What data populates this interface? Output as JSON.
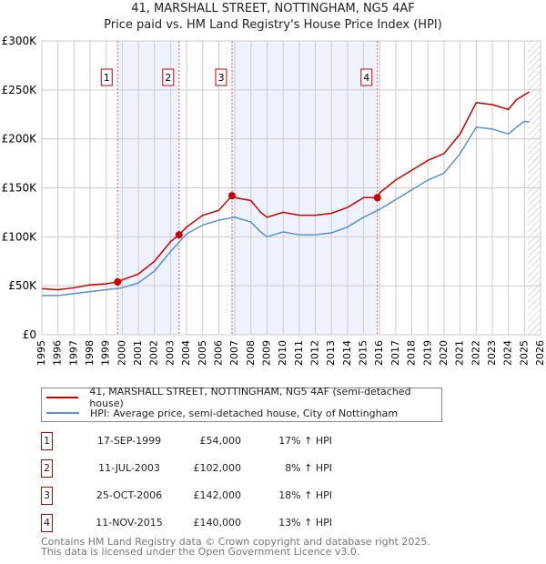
{
  "title": "41, MARSHALL STREET, NOTTINGHAM, NG5 4AF",
  "subtitle": "Price paid vs. HM Land Registry's House Price Index (HPI)",
  "chart_data": {
    "type": "line",
    "xlim": [
      1995,
      2026
    ],
    "ylim": [
      0,
      300000
    ],
    "y_ticks": [
      {
        "v": 0,
        "label": "£0"
      },
      {
        "v": 50000,
        "label": "£50K"
      },
      {
        "v": 100000,
        "label": "£100K"
      },
      {
        "v": 150000,
        "label": "£150K"
      },
      {
        "v": 200000,
        "label": "£200K"
      },
      {
        "v": 250000,
        "label": "£250K"
      },
      {
        "v": 300000,
        "label": "£300K"
      }
    ],
    "x_ticks": [
      "1995",
      "1996",
      "1997",
      "1998",
      "1999",
      "2000",
      "2001",
      "2002",
      "2003",
      "2004",
      "2005",
      "2006",
      "2007",
      "2008",
      "2009",
      "2010",
      "2011",
      "2012",
      "2013",
      "2014",
      "2015",
      "2016",
      "2017",
      "2018",
      "2019",
      "2020",
      "2021",
      "2022",
      "2023",
      "2024",
      "2025",
      "2026"
    ],
    "shaded_periods": [
      [
        1999.71,
        2003.53
      ],
      [
        2006.82,
        2015.86
      ]
    ],
    "forecast_hatch_from": 2025.2,
    "series": [
      {
        "name": "41, MARSHALL STREET, NOTTINGHAM, NG5 4AF (semi-detached house)",
        "color": "#cc0000",
        "x": [
          1995,
          1996,
          1997,
          1998,
          1999,
          1999.71,
          2000,
          2001,
          2002,
          2003,
          2003.53,
          2004,
          2005,
          2006,
          2006.82,
          2007,
          2008,
          2008.6,
          2009,
          2010,
          2011,
          2012,
          2013,
          2014,
          2015,
          2015.86,
          2016,
          2017,
          2018,
          2019,
          2020,
          2021,
          2022,
          2023,
          2024,
          2024.5,
          2025,
          2025.3
        ],
        "y": [
          47000,
          46000,
          48000,
          51000,
          52000,
          54000,
          56000,
          62000,
          75000,
          95000,
          102000,
          110000,
          122000,
          127000,
          142000,
          140000,
          137000,
          125000,
          120000,
          125000,
          122000,
          122000,
          124000,
          130000,
          140000,
          140000,
          145000,
          158000,
          168000,
          178000,
          185000,
          205000,
          237000,
          235000,
          230000,
          240000,
          245000,
          248000
        ]
      },
      {
        "name": "HPI: Average price, semi-detached house, City of Nottingham",
        "color": "#5b8fd4",
        "x": [
          1995,
          1996,
          1997,
          1998,
          1999,
          2000,
          2001,
          2002,
          2003,
          2004,
          2005,
          2006,
          2007,
          2008,
          2008.6,
          2009,
          2010,
          2011,
          2012,
          2013,
          2014,
          2015,
          2016,
          2017,
          2018,
          2019,
          2020,
          2021,
          2022,
          2023,
          2024,
          2024.5,
          2025,
          2025.3
        ],
        "y": [
          40000,
          40000,
          42000,
          44000,
          46000,
          48000,
          53000,
          65000,
          85000,
          103000,
          112000,
          117000,
          120000,
          115000,
          105000,
          100000,
          105000,
          102000,
          102000,
          104000,
          110000,
          120000,
          128000,
          138000,
          148000,
          158000,
          165000,
          185000,
          212000,
          210000,
          205000,
          212000,
          218000,
          217000
        ]
      }
    ],
    "sales": [
      {
        "n": "1",
        "x": 1999.71,
        "price": 54000
      },
      {
        "n": "2",
        "x": 2003.53,
        "price": 102000
      },
      {
        "n": "3",
        "x": 2006.82,
        "price": 142000
      },
      {
        "n": "4",
        "x": 2015.86,
        "price": 140000
      }
    ]
  },
  "legend": [
    "41, MARSHALL STREET, NOTTINGHAM, NG5 4AF (semi-detached house)",
    "HPI: Average price, semi-detached house, City of Nottingham"
  ],
  "table": [
    {
      "n": "1",
      "date": "17-SEP-1999",
      "price": "£54,000",
      "hpi": "17% ↑ HPI"
    },
    {
      "n": "2",
      "date": "11-JUL-2003",
      "price": "£102,000",
      "hpi": "8% ↑ HPI"
    },
    {
      "n": "3",
      "date": "25-OCT-2006",
      "price": "£142,000",
      "hpi": "18% ↑ HPI"
    },
    {
      "n": "4",
      "date": "11-NOV-2015",
      "price": "£140,000",
      "hpi": "13% ↑ HPI"
    }
  ],
  "footer": [
    "Contains HM Land Registry data © Crown copyright and database right 2025.",
    "This data is licensed under the Open Government Licence v3.0."
  ]
}
